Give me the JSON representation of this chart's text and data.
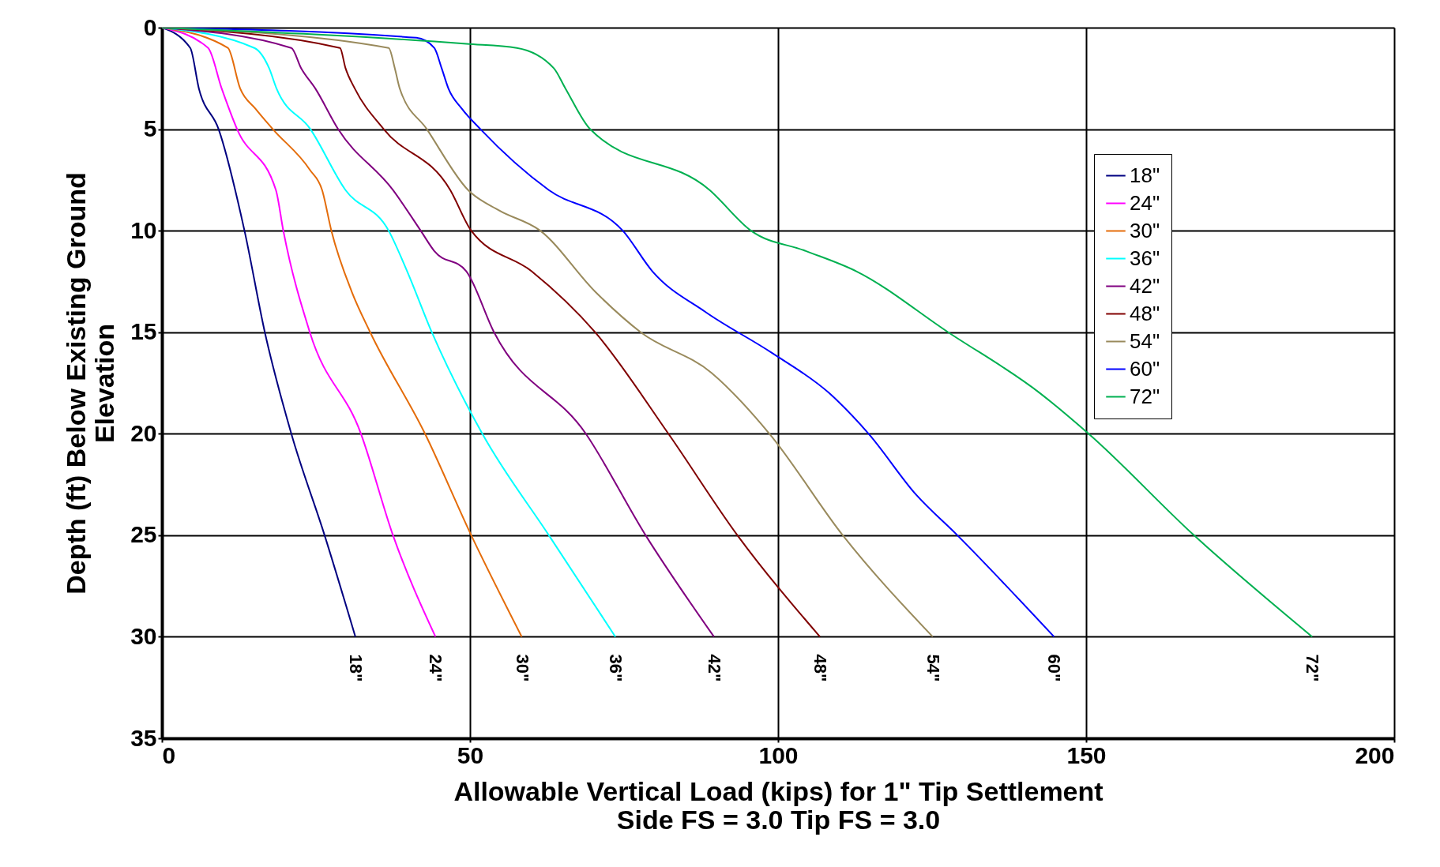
{
  "chart_data": {
    "type": "line",
    "xlabel": "Allowable Vertical Load (kips) for 1\" Tip Settlement\nSide FS = 3.0 Tip FS = 3.0",
    "ylabel": "Depth (ft) Below Existing Ground\nElevation",
    "xlim": [
      0,
      200
    ],
    "xticks": [
      0,
      50,
      100,
      150,
      200
    ],
    "ylim": [
      35,
      0
    ],
    "yticks": [
      0,
      5,
      10,
      15,
      20,
      25,
      30,
      35
    ],
    "grid": true,
    "legend": "top right",
    "marker": "none",
    "line_style": "solid",
    "series": [
      {
        "name": "18\"",
        "color": "#000080",
        "x": [
          0,
          4.6,
          6,
          9.2,
          13.4,
          16.7,
          21,
          26.4,
          31.4
        ],
        "values": [
          0,
          1,
          3,
          5,
          10,
          15,
          20,
          25,
          30
        ]
      },
      {
        "name": "24\"",
        "color": "#ff00ff",
        "x": [
          0,
          7.5,
          9.7,
          12.2,
          18.5,
          19.7,
          24,
          32.3,
          37.5,
          44.4
        ],
        "values": [
          0,
          1,
          3,
          5,
          8,
          10,
          15,
          20,
          25,
          30
        ]
      },
      {
        "name": "30\"",
        "color": "#e46c0a",
        "x": [
          0,
          10.7,
          12.7,
          15.2,
          18,
          24,
          26,
          27.5,
          30.8,
          33.8,
          42.7,
          50.2,
          58.4
        ],
        "values": [
          0,
          1,
          3,
          4,
          5,
          7,
          8,
          10,
          13,
          15,
          20,
          25,
          30
        ]
      },
      {
        "name": "36\"",
        "color": "#00ffff",
        "x": [
          0,
          15,
          17.4,
          18.6,
          24.1,
          29.8,
          36.8,
          39.8,
          43.8,
          52,
          62.8,
          73.6
        ],
        "values": [
          0,
          1,
          2,
          3,
          5,
          8,
          10,
          12,
          15,
          20,
          25,
          30
        ]
      },
      {
        "name": "42\"",
        "color": "#800080",
        "x": [
          0,
          21,
          22.6,
          24.9,
          28.6,
          37.5,
          42,
          44.2,
          49.4,
          53.9,
          68.8,
          78.5,
          89.6
        ],
        "values": [
          0,
          1,
          2,
          3,
          5,
          8,
          10,
          11,
          12,
          15,
          20,
          25,
          30
        ]
      },
      {
        "name": "48\"",
        "color": "#800000",
        "x": [
          0,
          28.9,
          29.8,
          31.3,
          36,
          46.8,
          50.2,
          60,
          70.3,
          82.2,
          93.4,
          106.8
        ],
        "values": [
          0,
          1,
          2,
          3,
          5,
          8,
          10,
          12,
          15,
          20,
          25,
          30
        ]
      },
      {
        "name": "54\"",
        "color": "#998a5c",
        "x": [
          0,
          36.8,
          37.8,
          38.6,
          43,
          49.7,
          54.7,
          61.4,
          70.3,
          77.7,
          89.2,
          98.6,
          110.5,
          125.1
        ],
        "values": [
          0,
          1,
          2,
          3,
          5,
          8,
          9,
          10,
          13,
          15,
          17,
          20,
          25,
          30
        ]
      },
      {
        "name": "60\"",
        "color": "#0000ff",
        "x": [
          0,
          41.3,
          44.2,
          45.4,
          46.5,
          48.7,
          51.7,
          62.8,
          74.8,
          79.6,
          88.2,
          98.9,
          108.3,
          114.7,
          122.4,
          129.1,
          144.8
        ],
        "values": [
          0,
          0.5,
          1,
          2,
          3,
          4,
          5,
          8,
          10,
          12,
          14,
          16,
          18,
          20,
          23,
          25,
          30
        ]
      },
      {
        "name": "72\"",
        "color": "#00b050",
        "x": [
          0,
          49.4,
          57.6,
          63.6,
          65.5,
          69.5,
          88.9,
          95.6,
          104.5,
          112.7,
          127.6,
          142.5,
          150.4,
          167.5,
          186.7
        ],
        "values": [
          0,
          0.8,
          1,
          2,
          3,
          5,
          8,
          10,
          11,
          12,
          15,
          18,
          20,
          25,
          30
        ]
      }
    ],
    "annotations": [
      "18\"",
      "24\"",
      "30\"",
      "36\"",
      "42\"",
      "48\"",
      "54\"",
      "60\"",
      "72\""
    ]
  }
}
